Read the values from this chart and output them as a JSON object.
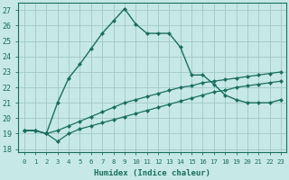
{
  "xlabel": "Humidex (Indice chaleur)",
  "xlim": [
    -0.5,
    23.5
  ],
  "ylim": [
    17.8,
    27.5
  ],
  "xticks": [
    0,
    1,
    2,
    3,
    4,
    5,
    6,
    7,
    8,
    9,
    10,
    11,
    12,
    13,
    14,
    15,
    16,
    17,
    18,
    19,
    20,
    21,
    22,
    23
  ],
  "yticks": [
    18,
    19,
    20,
    21,
    22,
    23,
    24,
    25,
    26,
    27
  ],
  "bg_color": "#c6e8e6",
  "grid_color": "#a0c8c8",
  "line_color": "#1a6e60",
  "line1_x": [
    0,
    1,
    2,
    3,
    4,
    5,
    6,
    7,
    8,
    9,
    10,
    11,
    12,
    13,
    14,
    15,
    16,
    17,
    18,
    19,
    20,
    21,
    22,
    23
  ],
  "line1_y": [
    19.2,
    19.2,
    19.0,
    18.5,
    19.0,
    19.3,
    19.5,
    19.7,
    19.9,
    20.1,
    20.3,
    20.5,
    20.7,
    20.9,
    21.1,
    21.3,
    21.5,
    21.7,
    21.8,
    22.0,
    22.1,
    22.2,
    22.3,
    22.4
  ],
  "line2_x": [
    0,
    1,
    2,
    3,
    4,
    5,
    6,
    7,
    8,
    9,
    10,
    11,
    12,
    13,
    14,
    15,
    16,
    17,
    18,
    19,
    20,
    21,
    22,
    23
  ],
  "line2_y": [
    19.2,
    19.2,
    19.0,
    19.2,
    19.5,
    19.8,
    20.1,
    20.4,
    20.7,
    21.0,
    21.2,
    21.4,
    21.6,
    21.8,
    22.0,
    22.1,
    22.3,
    22.4,
    22.5,
    22.6,
    22.7,
    22.8,
    22.9,
    23.0
  ],
  "line3_x": [
    0,
    1,
    2,
    3,
    4,
    5,
    6,
    7,
    8,
    9,
    10,
    11,
    12,
    13,
    14,
    15,
    16,
    17,
    18,
    19,
    20,
    21,
    22,
    23
  ],
  "line3_y": [
    19.2,
    19.2,
    19.0,
    21.0,
    22.6,
    23.5,
    24.5,
    25.5,
    26.3,
    27.1,
    26.1,
    25.5,
    25.5,
    25.5,
    24.6,
    22.8,
    22.8,
    22.2,
    21.5,
    21.2,
    21.0,
    21.0,
    21.0,
    21.2
  ],
  "marker_size": 2.5
}
